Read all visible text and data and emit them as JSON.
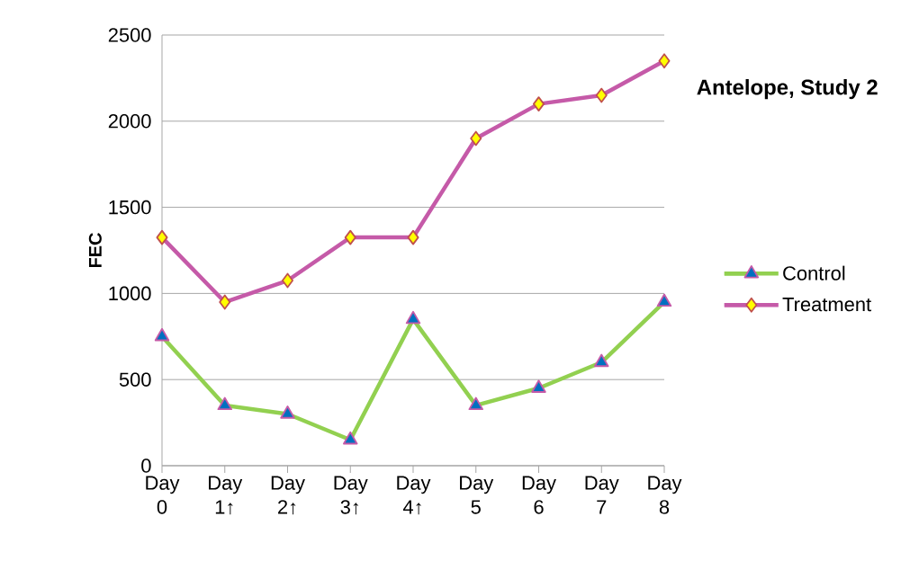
{
  "chart_data": {
    "type": "line",
    "title": "Antelope, Study 2",
    "ylabel": "FEC",
    "categories": [
      "Day 0",
      "Day 1↑",
      "Day 2↑",
      "Day 3↑",
      "Day 4↑",
      "Day 5",
      "Day 6",
      "Day 7",
      "Day 8"
    ],
    "series": [
      {
        "name": "Control",
        "color": "#92d050",
        "marker": "triangle",
        "values": [
          750,
          350,
          300,
          150,
          850,
          350,
          450,
          600,
          950
        ]
      },
      {
        "name": "Treatment",
        "color": "#c55aa8",
        "marker": "diamond",
        "values": [
          1325,
          950,
          1075,
          1325,
          1325,
          1900,
          2100,
          2150,
          2350
        ]
      }
    ],
    "ylim": [
      0,
      2500
    ],
    "yticks": [
      0,
      500,
      1000,
      1500,
      2000,
      2500
    ],
    "grid": "y",
    "legend": "right"
  }
}
